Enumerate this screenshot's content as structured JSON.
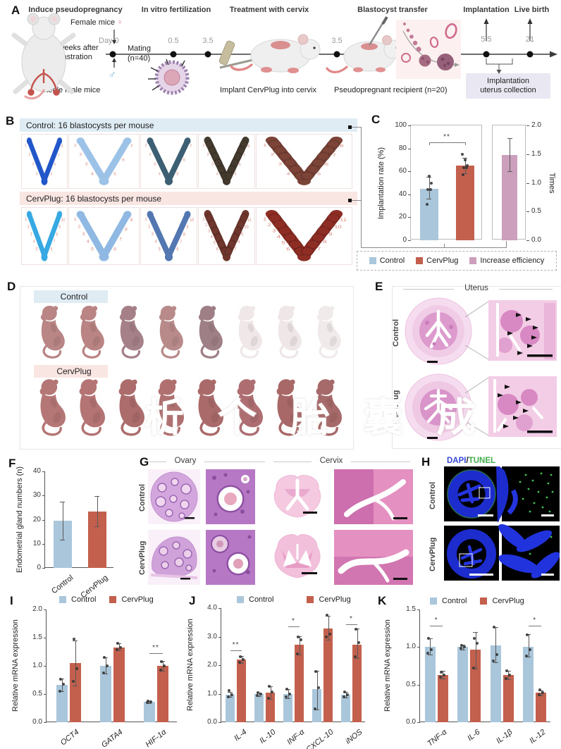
{
  "colors": {
    "control": "#a9c6db",
    "cervplug": "#c2604d",
    "increase": "#cc9fbd",
    "header_blue": "#dfecf4",
    "header_pink": "#f9e5e2",
    "dapi": "#3648d8",
    "tunel": "#3fae4a",
    "collection_box": "#e9e7f1"
  },
  "panel_a": {
    "label": "A",
    "steps": [
      "Induce pseudopregnancy",
      "In vitro fertilization",
      "Treatment with cervix",
      "Blastocyst transfer",
      "Implantation",
      "Live birth"
    ],
    "female_mice": "Female mice",
    "female_symbol": "♀",
    "male_symbol": "♂",
    "castration": "2 weeks after castration",
    "sterile_male": "Sterile male mice",
    "day0": "Day 0",
    "mating": "Mating",
    "mating_n": "(n=40)",
    "timepoints": [
      "0.5",
      "3.5",
      "3.5",
      "5.5",
      "21"
    ],
    "implant_caption": "Implant CervPlug into cervix",
    "recipient_caption": "Pseudopregnant recipient (n=20)",
    "collection_line1": "Implantation",
    "collection_line2": "uterus collection"
  },
  "panel_b": {
    "label": "B",
    "control_header": "Control: 16 blastocysts per mouse",
    "cervplug_header": "CervPlug: 16 blastocysts per mouse",
    "control_specimens": [
      {
        "color": "#2257c9",
        "count": 8,
        "beads": false
      },
      {
        "color": "#9cc2e8",
        "count": 7,
        "beads": false
      },
      {
        "color": "#3d5f73",
        "count": 7,
        "beads": false
      },
      {
        "color": "#453a2e",
        "count": 8,
        "beads": true
      },
      {
        "color": "#7c4337",
        "count": 8,
        "beads": true
      }
    ],
    "cervplug_specimens": [
      {
        "color": "#36a9e2",
        "count": 10,
        "beads": false
      },
      {
        "color": "#8fb9e2",
        "count": 9,
        "beads": false
      },
      {
        "color": "#5377b0",
        "count": 10,
        "beads": false
      },
      {
        "color": "#6e362c",
        "count": 11,
        "beads": true
      },
      {
        "color": "#8d2d24",
        "count": 11,
        "beads": true
      }
    ]
  },
  "panel_c": {
    "label": "C",
    "legend": [
      "Control",
      "CervPlug",
      "Increase efficiency"
    ]
  },
  "panel_d": {
    "label": "D",
    "control": "Control",
    "cervplug": "CervPlug",
    "watermark": "析 个 胎 囊 成",
    "control_pups": [
      "#b98585",
      "#bb8484",
      "#a68089",
      "#b98a8a",
      "#9f7f86",
      "#f0e8e8",
      "#efe7e7",
      "#f1eaea"
    ],
    "cervplug_pups": [
      "#b57676",
      "#b57474",
      "#ad6c6c",
      "#b07070",
      "#aa6a6a",
      "#ae6e71",
      "#a96868",
      "#a76a6a"
    ]
  },
  "panel_e": {
    "label": "E",
    "title": "Uterus",
    "rows": [
      "Control",
      "CervPlug"
    ]
  },
  "panel_f": {
    "label": "F"
  },
  "panel_g": {
    "label": "G",
    "columns": [
      "Ovary",
      "Cervix"
    ],
    "rows": [
      "Control",
      "CervPlug"
    ]
  },
  "panel_h": {
    "label": "H",
    "dapi": "DAPI",
    "slash": "/",
    "tunel": "TUNEL",
    "rows": [
      "Control",
      "CervPlug"
    ]
  },
  "panel_i": {
    "label": "I",
    "legend": [
      "Control",
      "CervPlug"
    ]
  },
  "panel_j": {
    "label": "J",
    "legend": [
      "Control",
      "CervPlug"
    ]
  },
  "panel_k": {
    "label": "K",
    "legend": [
      "Control",
      "CervPlug"
    ]
  },
  "chart_data": [
    {
      "id": "c-left",
      "type": "bar",
      "ylabel": "Implantation rate (%)",
      "ylim": [
        0,
        100
      ],
      "yticks": [
        "0",
        "20",
        "40",
        "60",
        "80",
        "100"
      ],
      "frame": true,
      "xlabels": false,
      "sig_drops": true,
      "groups": [
        {
          "label": "Control",
          "bars": [
            {
              "series": "Control",
              "value": 45,
              "err": [
                36,
                55
              ],
              "dots": [
                31,
                44,
                44,
                50,
                56
              ]
            }
          ]
        },
        {
          "label": "CervPlug",
          "bars": [
            {
              "series": "CervPlug",
              "value": 65,
              "err": [
                58,
                72
              ],
              "dots": [
                57,
                63,
                63,
                65,
                70,
                75
              ]
            }
          ]
        }
      ],
      "sig": [
        {
          "g1": 0,
          "b1": 0,
          "g2": 1,
          "b2": 0,
          "y": 85,
          "label": "**"
        }
      ]
    },
    {
      "id": "c-right",
      "type": "bar",
      "ylabel": "Times",
      "yaxis": "right",
      "ylim": [
        0,
        2
      ],
      "yticks": [
        "0.0",
        "0.5",
        "1.0",
        "1.5",
        "2.0"
      ],
      "frame": true,
      "xlabels": false,
      "groups": [
        {
          "label": "Increase efficiency",
          "bars": [
            {
              "series": "Increase efficiency",
              "value": 1.48,
              "err": [
                1.2,
                1.78
              ],
              "dots": []
            }
          ]
        }
      ],
      "sig": []
    },
    {
      "id": "f",
      "type": "bar",
      "ylabel": "Endometrial gland numbers (n)",
      "ylim": [
        0,
        40
      ],
      "yticks": [
        "0",
        "10",
        "20",
        "30",
        "40"
      ],
      "frame": false,
      "xlabels": true,
      "groups": [
        {
          "label": "Control",
          "bars": [
            {
              "series": "Control",
              "value": 19.5,
              "err": [
                11.7,
                27.3
              ],
              "dots": []
            }
          ]
        },
        {
          "label": "CervPlug",
          "bars": [
            {
              "series": "CervPlug",
              "value": 23.5,
              "err": [
                17.3,
                29.8
              ],
              "dots": []
            }
          ]
        }
      ],
      "sig": []
    },
    {
      "id": "i",
      "type": "bar",
      "ylabel": "Relative mRNA expression",
      "ylim": [
        0,
        2
      ],
      "yticks": [
        "0.0",
        "0.5",
        "1.0",
        "1.5",
        "2.0"
      ],
      "frame": false,
      "xlabels": true,
      "xitalic": true,
      "groups": [
        {
          "label": "OCT4",
          "bars": [
            {
              "series": "Control",
              "value": 0.66,
              "err": [
                0.55,
                0.77
              ],
              "dots": [
                0.55,
                0.68,
                0.76
              ]
            },
            {
              "series": "CervPlug",
              "value": 1.05,
              "err": [
                0.65,
                1.45
              ],
              "dots": [
                0.72,
                0.95,
                1.48
              ]
            }
          ]
        },
        {
          "label": "GATA4",
          "bars": [
            {
              "series": "Control",
              "value": 1.0,
              "err": [
                0.86,
                1.15
              ],
              "dots": [
                0.87,
                1.0,
                1.15
              ]
            },
            {
              "series": "CervPlug",
              "value": 1.33,
              "err": [
                1.27,
                1.4
              ],
              "dots": [
                1.29,
                1.33,
                1.4
              ]
            }
          ]
        },
        {
          "label": "HIF-1α",
          "bars": [
            {
              "series": "Control",
              "value": 0.36,
              "err": [
                0.34,
                0.38
              ],
              "dots": [
                0.35,
                0.36,
                0.37
              ]
            },
            {
              "series": "CervPlug",
              "value": 1.0,
              "err": [
                0.91,
                1.09
              ],
              "dots": [
                0.93,
                1.0,
                1.08
              ]
            }
          ]
        }
      ],
      "sig": [
        {
          "g1": 2,
          "b1": 0,
          "g2": 2,
          "b2": 1,
          "y": 1.22,
          "label": "**"
        }
      ]
    },
    {
      "id": "j",
      "type": "bar",
      "ylabel": "Relative mRNA expression",
      "ylim": [
        0,
        4
      ],
      "yticks": [
        "0.0",
        "1.0",
        "2.0",
        "3.0",
        "4.0"
      ],
      "frame": false,
      "xlabels": true,
      "xitalic": true,
      "groups": [
        {
          "label": "IL-4",
          "bars": [
            {
              "series": "Control",
              "value": 0.97,
              "err": [
                0.88,
                1.06
              ],
              "dots": [
                0.88,
                0.97,
                1.1
              ]
            },
            {
              "series": "CervPlug",
              "value": 2.2,
              "err": [
                2.08,
                2.32
              ],
              "dots": [
                2.1,
                2.2,
                2.3
              ]
            }
          ]
        },
        {
          "label": "IL-10",
          "bars": [
            {
              "series": "Control",
              "value": 0.98,
              "err": [
                0.92,
                1.04
              ],
              "dots": [
                0.93,
                0.98,
                1.03
              ]
            },
            {
              "series": "CervPlug",
              "value": 1.04,
              "err": [
                0.82,
                1.27
              ],
              "dots": [
                0.85,
                1.05,
                1.25
              ]
            }
          ]
        },
        {
          "label": "INF-α",
          "bars": [
            {
              "series": "Control",
              "value": 1.0,
              "err": [
                0.85,
                1.15
              ],
              "dots": [
                0.88,
                1.0,
                1.15
              ]
            },
            {
              "series": "CervPlug",
              "value": 2.72,
              "err": [
                2.38,
                3.02
              ],
              "dots": [
                2.4,
                2.9,
                3.0
              ]
            }
          ]
        },
        {
          "label": "CXCL-10",
          "bars": [
            {
              "series": "Control",
              "value": 1.15,
              "err": [
                0.45,
                1.8
              ],
              "dots": [
                0.47,
                1.2,
                1.77
              ]
            },
            {
              "series": "CervPlug",
              "value": 3.28,
              "err": [
                2.88,
                3.72
              ],
              "dots": [
                3.0,
                3.08,
                3.75
              ]
            }
          ]
        },
        {
          "label": "iNOS",
          "bars": [
            {
              "series": "Control",
              "value": 0.97,
              "err": [
                0.87,
                1.07
              ],
              "dots": [
                0.9,
                0.97,
                1.06
              ]
            },
            {
              "series": "CervPlug",
              "value": 2.72,
              "err": [
                2.24,
                3.28
              ],
              "dots": [
                2.3,
                2.78,
                3.25
              ]
            }
          ]
        }
      ],
      "sig": [
        {
          "g1": 0,
          "b1": 0,
          "g2": 0,
          "b2": 1,
          "y": 2.52,
          "label": "**"
        },
        {
          "g1": 2,
          "b1": 0,
          "g2": 2,
          "b2": 1,
          "y": 3.35,
          "label": "*"
        },
        {
          "g1": 4,
          "b1": 0,
          "g2": 4,
          "b2": 1,
          "y": 3.42,
          "label": "*"
        }
      ]
    },
    {
      "id": "k",
      "type": "bar",
      "ylabel": "Relative mRNA expression",
      "ylim": [
        0,
        1.5
      ],
      "yticks": [
        "0.0",
        "0.5",
        "1.0",
        "1.5"
      ],
      "frame": false,
      "xlabels": true,
      "xitalic": true,
      "groups": [
        {
          "label": "TNF-α",
          "bars": [
            {
              "series": "Control",
              "value": 1.0,
              "err": [
                0.9,
                1.12
              ],
              "dots": [
                0.92,
                0.97,
                1.12
              ]
            },
            {
              "series": "CervPlug",
              "value": 0.63,
              "err": [
                0.58,
                0.68
              ],
              "dots": [
                0.6,
                0.63,
                0.67
              ]
            }
          ]
        },
        {
          "label": "IL-6",
          "bars": [
            {
              "series": "Control",
              "value": 1.0,
              "err": [
                0.97,
                1.03
              ],
              "dots": [
                0.98,
                1.0,
                1.02
              ]
            },
            {
              "series": "CervPlug",
              "value": 0.97,
              "err": [
                0.71,
                1.2
              ],
              "dots": [
                0.72,
                1.05,
                1.12
              ]
            }
          ]
        },
        {
          "label": "IL-1β",
          "bars": [
            {
              "series": "Control",
              "value": 1.02,
              "err": [
                0.8,
                1.27
              ],
              "dots": [
                0.82,
                0.9,
                1.27
              ]
            },
            {
              "series": "CervPlug",
              "value": 0.63,
              "err": [
                0.57,
                0.68
              ],
              "dots": [
                0.58,
                0.63,
                0.68
              ]
            }
          ]
        },
        {
          "label": "IL-12",
          "bars": [
            {
              "series": "Control",
              "value": 1.0,
              "err": [
                0.87,
                1.17
              ],
              "dots": [
                0.88,
                0.97,
                1.16
              ]
            },
            {
              "series": "CervPlug",
              "value": 0.39,
              "err": [
                0.36,
                0.42
              ],
              "dots": [
                0.37,
                0.39,
                0.43
              ]
            }
          ]
        }
      ],
      "sig": [
        {
          "g1": 0,
          "b1": 0,
          "g2": 0,
          "b2": 1,
          "y": 1.28,
          "label": "*"
        },
        {
          "g1": 3,
          "b1": 0,
          "g2": 3,
          "b2": 1,
          "y": 1.28,
          "label": "*"
        }
      ]
    }
  ]
}
